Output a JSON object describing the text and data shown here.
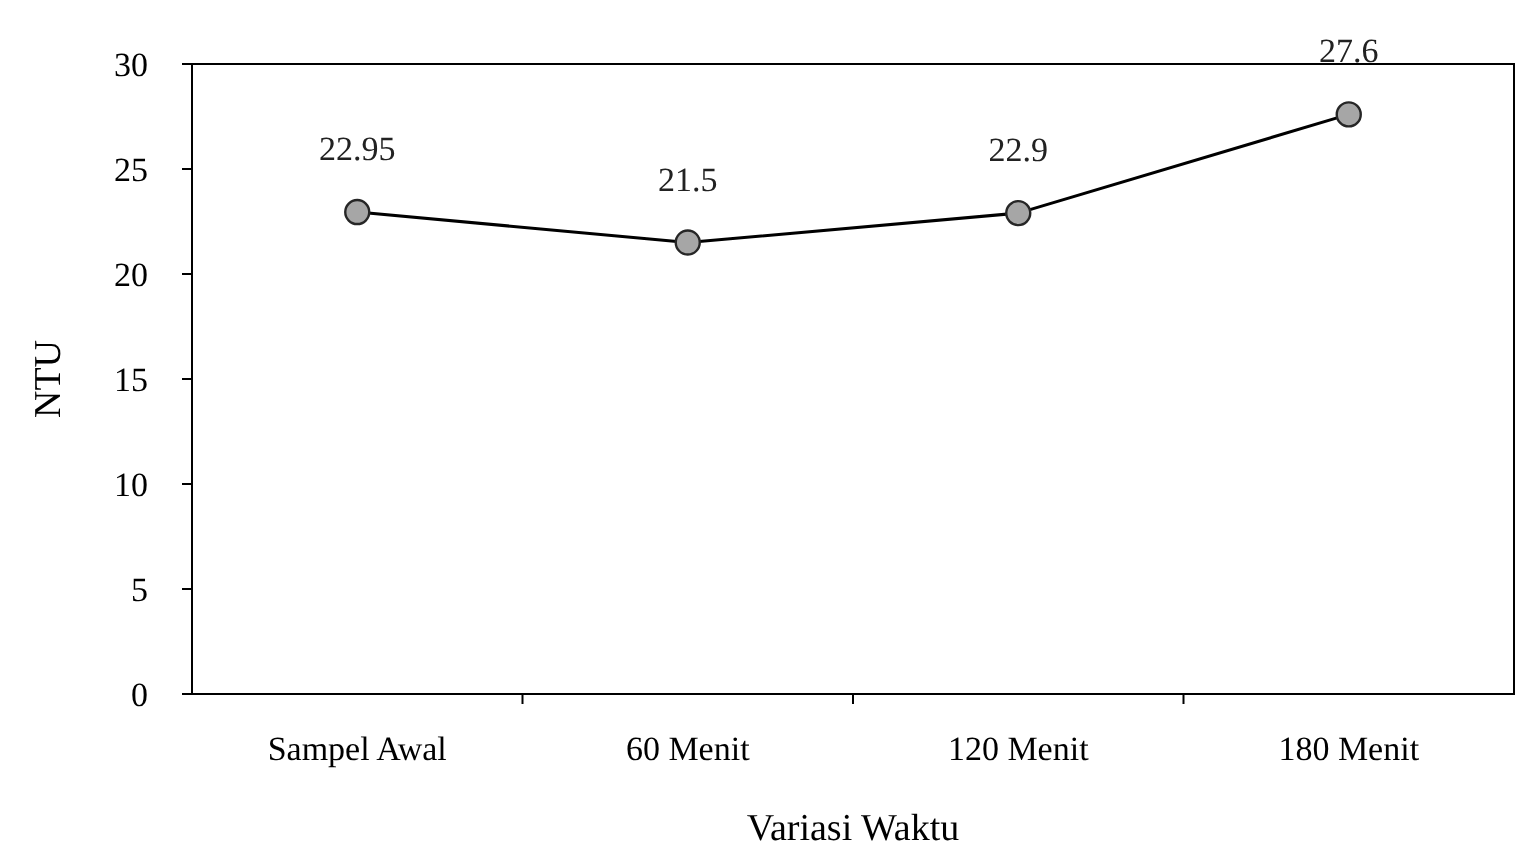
{
  "chart_data": {
    "type": "line",
    "xlabel": "Variasi Waktu",
    "ylabel": "NTU",
    "categories": [
      "Sampel Awal",
      "60 Menit",
      "120 Menit",
      "180 Menit"
    ],
    "series": [
      {
        "color": "#000000",
        "values": [
          22.95,
          21.5,
          22.9,
          27.6
        ]
      }
    ],
    "ylim": [
      0,
      30
    ],
    "yticks": [
      0,
      5,
      10,
      15,
      20,
      25,
      30
    ],
    "marker": "circle",
    "data_labels": true
  }
}
